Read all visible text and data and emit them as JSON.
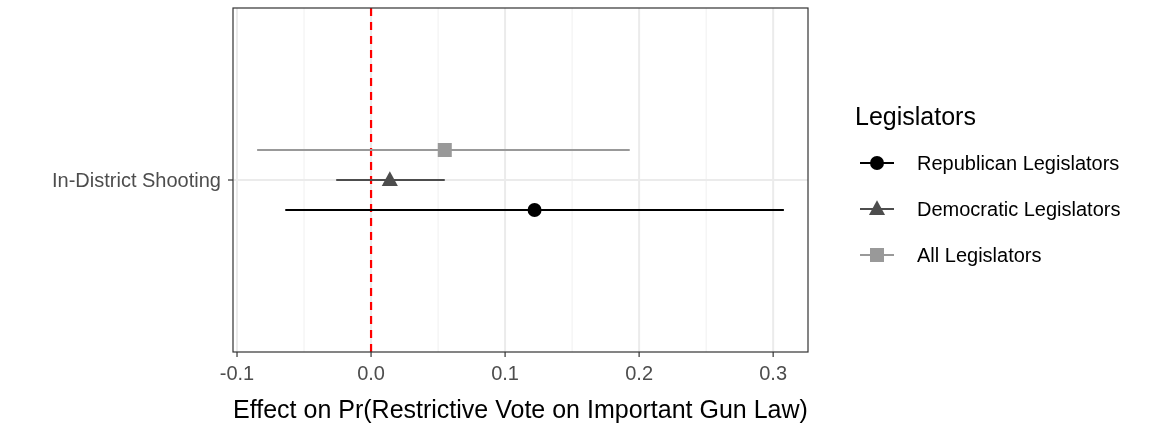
{
  "chart_data": {
    "type": "scatter",
    "orientation": "horizontal",
    "xlabel": "Effect on Pr(Restrictive Vote on Important Gun Law)",
    "legend_title": "Legislators",
    "legend": "right",
    "grid": true,
    "categories": [
      "In-District Shooting"
    ],
    "xlim": [
      -0.103,
      0.326
    ],
    "xticks": [
      {
        "value": -0.1,
        "label": "-0.1"
      },
      {
        "value": 0,
        "label": "0.0"
      },
      {
        "value": 0.1,
        "label": "0.1"
      },
      {
        "value": 0.2,
        "label": "0.2"
      },
      {
        "value": 0.3,
        "label": "0.3"
      }
    ],
    "ref_lines": [
      {
        "axis": "x",
        "value": 0,
        "color": "#ff0000",
        "line_style": "dashed"
      }
    ],
    "series": [
      {
        "name": "Republican Legislators",
        "color": "#000000",
        "marker": "circle",
        "values": [
          0.122
        ],
        "errors": [
          [
            -0.064,
            0.308
          ]
        ]
      },
      {
        "name": "Democratic Legislators",
        "color": "#4d4d4d",
        "marker": "triangle",
        "values": [
          0.014
        ],
        "errors": [
          [
            -0.026,
            0.055
          ]
        ]
      },
      {
        "name": "All Legislators",
        "color": "#999999",
        "marker": "square",
        "values": [
          0.055
        ],
        "errors": [
          [
            -0.085,
            0.193
          ]
        ]
      }
    ]
  }
}
